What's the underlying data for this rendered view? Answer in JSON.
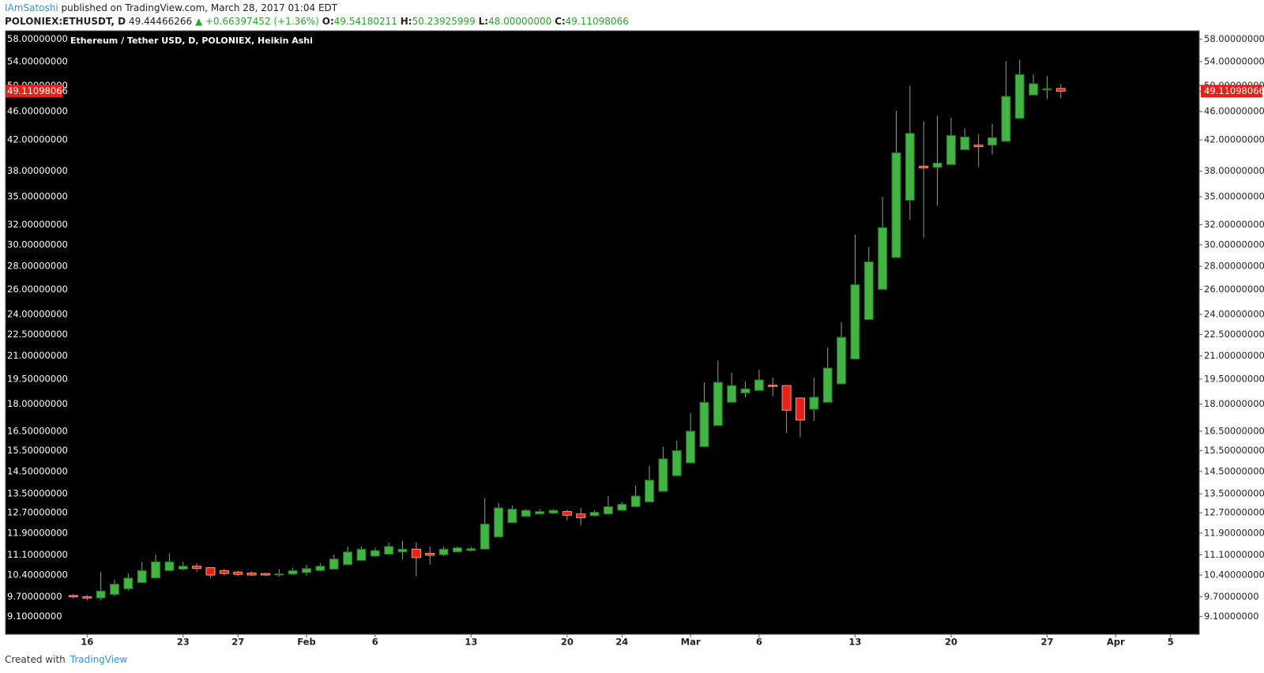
{
  "header": {
    "author": "IAmSatoshi",
    "published": "published on TradingView.com, March 28, 2017 01:04 EDT",
    "symbol": "POLONIEX:ETHUSDT, D",
    "last": "49.44466266",
    "change": "▲ +0.66397452 (+1.36%)",
    "ohlc": [
      {
        "label": "O:",
        "value": "49.54180211"
      },
      {
        "label": "H:",
        "value": "50.23925999"
      },
      {
        "label": "L:",
        "value": "48.00000000"
      },
      {
        "label": "C:",
        "value": "49.11098066"
      }
    ]
  },
  "footer": {
    "created": "Created with",
    "brand": "TradingView"
  },
  "chart_data": {
    "type": "candlestick",
    "title": "Ethereum / Tether USD, D, POLONIEX, Heikin Ashi",
    "log_scale": true,
    "up_color": "#43b343",
    "down_color": "#e3221c",
    "background": "#000000",
    "categories": [
      null,
      "16",
      null,
      null,
      null,
      null,
      null,
      null,
      "23",
      null,
      null,
      null,
      "27",
      null,
      null,
      null,
      null,
      "Feb",
      null,
      null,
      null,
      null,
      "6",
      null,
      null,
      null,
      null,
      null,
      null,
      "13",
      null,
      null,
      null,
      null,
      null,
      null,
      "20",
      null,
      null,
      null,
      "24",
      null,
      null,
      null,
      null,
      "Mar",
      null,
      null,
      null,
      null,
      "6",
      null,
      null,
      null,
      null,
      null,
      null,
      "13",
      null,
      null,
      null,
      null,
      null,
      null,
      "20",
      null,
      null,
      null,
      null,
      null,
      null,
      "27",
      null,
      null,
      null,
      null,
      "Apr",
      null,
      null,
      null,
      "5"
    ],
    "open": [
      9.74,
      9.7,
      9.66,
      9.77,
      9.95,
      10.15,
      10.3,
      10.55,
      10.6,
      10.7,
      10.65,
      10.55,
      10.5,
      10.47,
      10.45,
      10.42,
      10.43,
      10.48,
      10.55,
      10.6,
      10.75,
      10.9,
      11.05,
      11.12,
      11.2,
      11.3,
      11.15,
      11.1,
      11.2,
      11.25,
      11.3,
      11.75,
      12.3,
      12.55,
      12.65,
      12.68,
      12.75,
      12.65,
      12.58,
      12.65,
      12.8,
      12.95,
      13.15,
      13.6,
      14.3,
      14.9,
      15.7,
      16.8,
      18.1,
      18.65,
      18.8,
      19.12,
      19.1,
      18.35,
      17.7,
      18.1,
      19.2,
      20.8,
      23.6,
      26.0,
      28.8,
      34.6,
      38.6,
      38.45,
      38.8,
      40.7,
      41.3,
      41.3,
      41.8,
      45.0,
      48.5,
      49.3,
      49.54180211,
      null,
      null,
      null,
      null,
      null,
      null,
      null,
      null
    ],
    "high": [
      9.78,
      9.75,
      10.5,
      10.25,
      10.45,
      10.85,
      11.1,
      11.15,
      10.85,
      10.8,
      10.65,
      10.6,
      10.55,
      10.52,
      10.48,
      10.6,
      10.65,
      10.75,
      10.8,
      11.1,
      11.4,
      11.4,
      11.35,
      11.55,
      11.6,
      11.55,
      11.4,
      11.4,
      11.4,
      11.38,
      13.3,
      13.1,
      13.0,
      12.85,
      12.85,
      12.85,
      12.82,
      12.9,
      12.8,
      13.4,
      13.15,
      13.85,
      14.75,
      15.7,
      16.0,
      17.5,
      19.3,
      20.7,
      19.9,
      19.35,
      20.1,
      19.6,
      19.1,
      18.35,
      19.6,
      21.6,
      23.4,
      31.0,
      29.8,
      35.0,
      46.1,
      50.0,
      44.6,
      45.4,
      45.1,
      43.6,
      42.8,
      44.2,
      54.0,
      54.3,
      51.8,
      51.6,
      50.23925999,
      null,
      null,
      null,
      null,
      null,
      null,
      null,
      null
    ],
    "low": [
      9.64,
      9.58,
      9.58,
      9.72,
      9.9,
      10.15,
      10.3,
      10.55,
      10.55,
      10.5,
      10.3,
      10.38,
      10.36,
      10.37,
      10.38,
      10.35,
      10.4,
      10.38,
      10.52,
      10.6,
      10.75,
      10.9,
      11.02,
      11.12,
      10.95,
      10.35,
      10.75,
      11.05,
      11.2,
      11.22,
      11.3,
      11.75,
      12.3,
      12.55,
      12.63,
      12.65,
      12.4,
      12.2,
      12.55,
      12.62,
      12.78,
      12.95,
      13.15,
      13.6,
      14.3,
      14.9,
      15.7,
      16.8,
      18.1,
      18.4,
      18.8,
      18.45,
      16.4,
      16.2,
      17.05,
      18.1,
      19.2,
      20.8,
      23.6,
      26.0,
      28.8,
      32.5,
      30.7,
      34.0,
      38.8,
      40.7,
      38.5,
      40.1,
      41.8,
      45.0,
      48.5,
      47.9,
      48,
      null,
      null,
      null,
      null,
      null,
      null,
      null,
      null
    ],
    "close": [
      9.7,
      9.66,
      9.88,
      10.1,
      10.3,
      10.55,
      10.85,
      10.85,
      10.7,
      10.62,
      10.4,
      10.45,
      10.42,
      10.4,
      10.4,
      10.44,
      10.55,
      10.62,
      10.7,
      10.95,
      11.2,
      11.3,
      11.25,
      11.4,
      11.3,
      11.0,
      11.08,
      11.3,
      11.35,
      11.32,
      12.25,
      12.9,
      12.85,
      12.8,
      12.75,
      12.8,
      12.6,
      12.5,
      12.72,
      12.95,
      13.05,
      13.4,
      14.1,
      15.1,
      15.5,
      16.5,
      18.1,
      19.3,
      19.1,
      18.9,
      19.45,
      19.05,
      17.65,
      17.1,
      18.4,
      20.2,
      22.3,
      26.4,
      28.4,
      31.7,
      40.3,
      42.9,
      38.4,
      39.0,
      42.6,
      42.4,
      41.1,
      42.3,
      48.3,
      51.8,
      50.3,
      49.5,
      49.11098066,
      null,
      null,
      null,
      null,
      null,
      null,
      null,
      null
    ],
    "last_price": {
      "value": 49.11098066,
      "label": "49.11098066"
    },
    "ylim": [
      8.6,
      59.6
    ],
    "yticks": [
      {
        "value": 9.1,
        "label": "9.10000000"
      },
      {
        "value": 9.7,
        "label": "9.70000000"
      },
      {
        "value": 10.4,
        "label": "10.40000000"
      },
      {
        "value": 11.1,
        "label": "11.10000000"
      },
      {
        "value": 11.9,
        "label": "11.90000000"
      },
      {
        "value": 12.7,
        "label": "12.70000000"
      },
      {
        "value": 13.5,
        "label": "13.50000000"
      },
      {
        "value": 14.5,
        "label": "14.50000000"
      },
      {
        "value": 15.5,
        "label": "15.50000000"
      },
      {
        "value": 16.5,
        "label": "16.50000000"
      },
      {
        "value": 18,
        "label": "18.00000000"
      },
      {
        "value": 19.5,
        "label": "19.50000000"
      },
      {
        "value": 21,
        "label": "21.00000000"
      },
      {
        "value": 22.5,
        "label": "22.50000000"
      },
      {
        "value": 24,
        "label": "24.00000000"
      },
      {
        "value": 26,
        "label": "26.00000000"
      },
      {
        "value": 28,
        "label": "28.00000000"
      },
      {
        "value": 30,
        "label": "30.00000000"
      },
      {
        "value": 32,
        "label": "32.00000000"
      },
      {
        "value": 35,
        "label": "35.00000000"
      },
      {
        "value": 38,
        "label": "38.00000000"
      },
      {
        "value": 42,
        "label": "42.00000000"
      },
      {
        "value": 46,
        "label": "46.00000000"
      },
      {
        "value": 50,
        "label": "50.00000000"
      },
      {
        "value": 54,
        "label": "54.00000000"
      },
      {
        "value": 58,
        "label": "58.00000000"
      }
    ]
  }
}
